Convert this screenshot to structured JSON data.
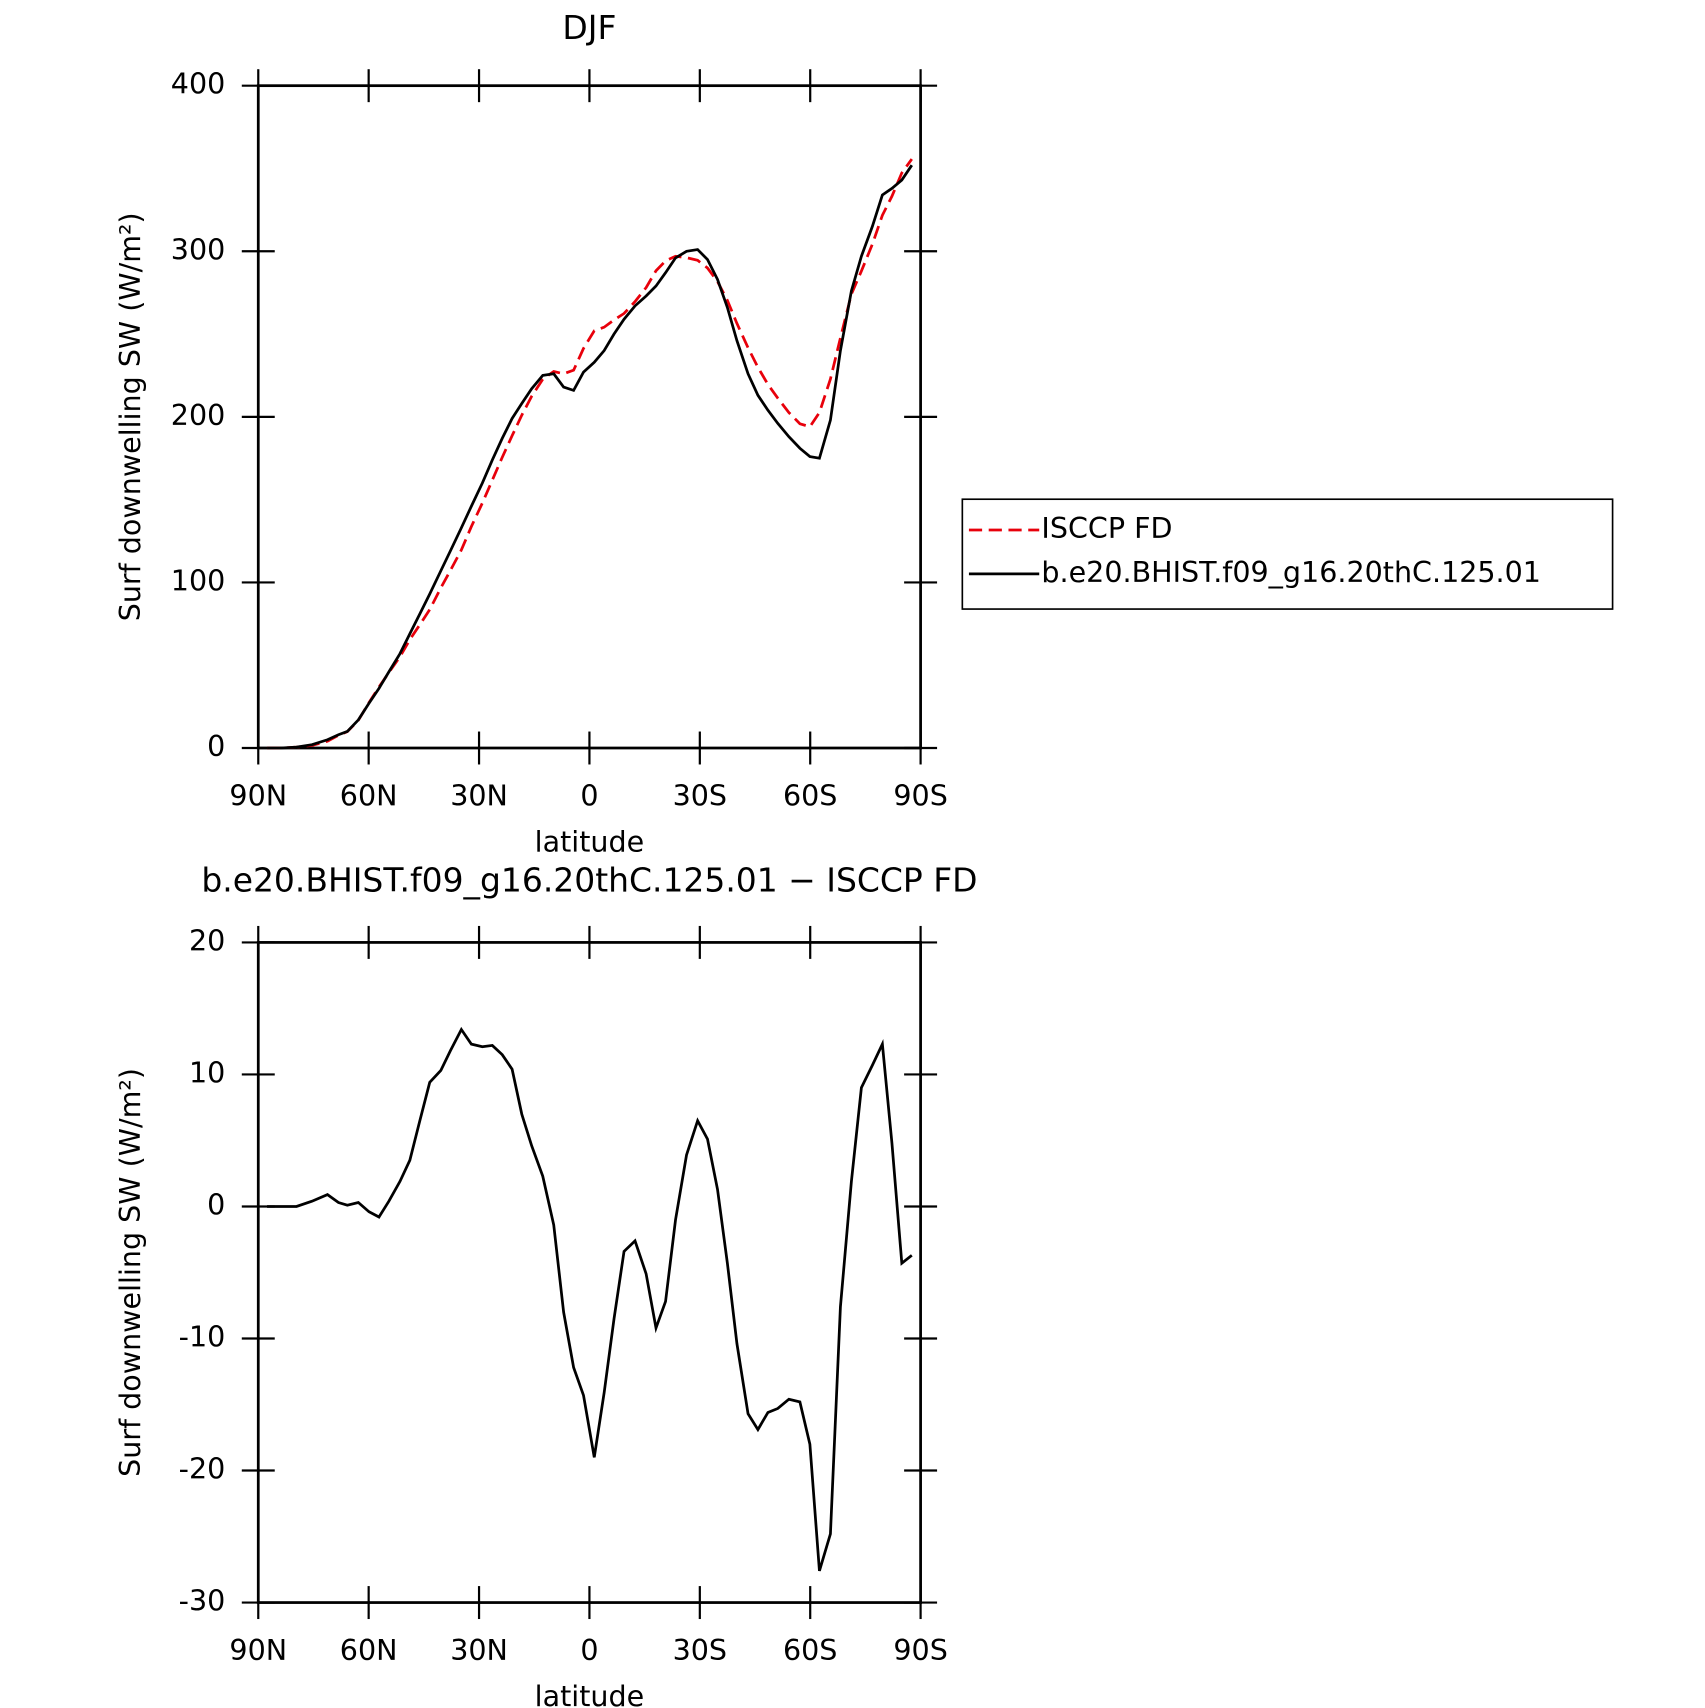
{
  "chart_data": [
    {
      "type": "line",
      "title": "DJF",
      "xlabel": "latitude",
      "ylabel": "Surf downwelling SW (W/m²)",
      "x": [
        87.6,
        83.7,
        79.6,
        75.4,
        71.2,
        68.2,
        65.8,
        62.8,
        59.9,
        57.2,
        54.5,
        51.5,
        48.8,
        46.1,
        43.4,
        40.4,
        37.8,
        34.8,
        32.1,
        29.1,
        26.4,
        23.7,
        21.0,
        18.4,
        15.7,
        12.7,
        9.7,
        7.0,
        4.3,
        1.6,
        -1.3,
        -4.0,
        -6.7,
        -9.4,
        -12.4,
        -15.4,
        -18.1,
        -20.7,
        -23.4,
        -26.4,
        -29.4,
        -32.1,
        -34.8,
        -37.5,
        -40.1,
        -43.1,
        -45.8,
        -48.5,
        -51.2,
        -54.2,
        -57.2,
        -59.9,
        -62.5,
        -65.5,
        -68.2,
        -71.2,
        -73.9,
        -76.9,
        -79.6,
        -82.2,
        -84.9,
        -87.6
      ],
      "series": [
        {
          "name": "ISCCP FD",
          "color": "#e8000b",
          "style": "dashed",
          "values": [
            0,
            0,
            0.5,
            1.6,
            4.1,
            7.7,
            9.9,
            16.7,
            27.4,
            36.8,
            45.6,
            55.1,
            65.5,
            74.5,
            83.6,
            96.7,
            107.2,
            119.6,
            133.7,
            147.9,
            161.8,
            175.5,
            188.6,
            201,
            212.4,
            222.7,
            227.4,
            226,
            228.2,
            241.3,
            252,
            254.1,
            258.5,
            262.4,
            269.6,
            278.1,
            288.2,
            294.2,
            297,
            296.1,
            294.5,
            289.9,
            281.7,
            270.3,
            256.4,
            241.7,
            229.9,
            219.6,
            211.3,
            202.6,
            195.8,
            194,
            202.6,
            222.8,
            247.6,
            274.1,
            288,
            304.3,
            321.7,
            333.2,
            347.3,
            355.7
          ]
        },
        {
          "name": "b.e20.BHIST.f09_g16.20thC.125.01",
          "color": "#000000",
          "style": "solid",
          "values": [
            0,
            0,
            0.5,
            2,
            5,
            8,
            10,
            17,
            27,
            36,
            46,
            57,
            69,
            81,
            93,
            107,
            119,
            133,
            146,
            160,
            174,
            187,
            199,
            208,
            217,
            225,
            226,
            218,
            216,
            227,
            233,
            240,
            250,
            259,
            267,
            273,
            279,
            287,
            296,
            300,
            301,
            295,
            283,
            266,
            246,
            226,
            213,
            204,
            196,
            188,
            181,
            176,
            175,
            198,
            240,
            276,
            297,
            315,
            334,
            338,
            343,
            352
          ]
        }
      ],
      "xlim": [
        90,
        -90
      ],
      "xticks": [
        {
          "value": 90,
          "label": "90N"
        },
        {
          "value": 60,
          "label": "60N"
        },
        {
          "value": 30,
          "label": "30N"
        },
        0,
        {
          "value": -30,
          "label": "30S"
        },
        {
          "value": -60,
          "label": "60S"
        },
        {
          "value": -90,
          "label": "90S"
        }
      ],
      "ylim": [
        0,
        400
      ],
      "yticks": [
        0,
        100,
        200,
        300,
        400
      ],
      "legend": "right"
    },
    {
      "type": "line",
      "title": "b.e20.BHIST.f09_g16.20thC.125.01 − ISCCP FD",
      "xlabel": "latitude",
      "ylabel": "Surf downwelling SW (W/m²)",
      "x": [
        87.6,
        83.7,
        79.6,
        75.4,
        71.2,
        68.2,
        65.8,
        62.8,
        59.9,
        57.2,
        54.5,
        51.5,
        48.8,
        46.1,
        43.4,
        40.4,
        37.8,
        34.8,
        32.1,
        29.1,
        26.4,
        23.7,
        21.0,
        18.4,
        15.7,
        12.7,
        9.7,
        7.0,
        4.3,
        1.6,
        -1.3,
        -4.0,
        -6.7,
        -9.4,
        -12.4,
        -15.4,
        -18.1,
        -20.7,
        -23.4,
        -26.4,
        -29.4,
        -32.1,
        -34.8,
        -37.5,
        -40.1,
        -43.1,
        -45.8,
        -48.5,
        -51.2,
        -54.2,
        -57.2,
        -59.9,
        -62.5,
        -65.5,
        -68.2,
        -71.2,
        -73.9,
        -76.9,
        -79.6,
        -82.2,
        -84.9,
        -87.6
      ],
      "values": [
        0,
        0,
        0,
        0.4,
        0.9,
        0.3,
        0.1,
        0.3,
        -0.4,
        -0.8,
        0.4,
        1.9,
        3.5,
        6.5,
        9.4,
        10.3,
        11.8,
        13.4,
        12.3,
        12.1,
        12.2,
        11.5,
        10.4,
        7,
        4.6,
        2.3,
        -1.4,
        -8,
        -12.2,
        -14.3,
        -19,
        -14.1,
        -8.5,
        -3.4,
        -2.6,
        -5.1,
        -9.2,
        -7.2,
        -1,
        3.9,
        6.5,
        5.1,
        1.3,
        -4.3,
        -10.4,
        -15.7,
        -16.9,
        -15.6,
        -15.3,
        -14.6,
        -14.8,
        -18,
        -27.6,
        -24.8,
        -7.6,
        1.9,
        9,
        10.7,
        12.3,
        4.8,
        -4.3,
        -3.7
      ],
      "color": "#000000",
      "xlim": [
        90,
        -90
      ],
      "xticks": [
        {
          "value": 90,
          "label": "90N"
        },
        {
          "value": 60,
          "label": "60N"
        },
        {
          "value": 30,
          "label": "30N"
        },
        0,
        {
          "value": -30,
          "label": "30S"
        },
        {
          "value": -60,
          "label": "60S"
        },
        {
          "value": -90,
          "label": "90S"
        }
      ],
      "ylim": [
        -30,
        20
      ],
      "yticks": [
        -30,
        -20,
        -10,
        0,
        10,
        20
      ]
    }
  ]
}
